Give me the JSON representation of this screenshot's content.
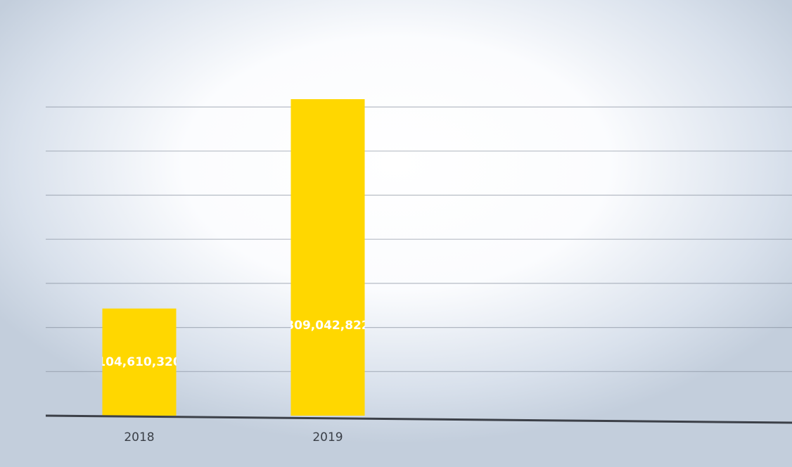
{
  "chart_data": {
    "type": "bar",
    "categories": [
      "2018",
      "2019"
    ],
    "values": [
      104610320,
      309042822
    ],
    "value_labels": [
      "104,610,320",
      "309,042,822"
    ],
    "color": "#ffd700"
  }
}
